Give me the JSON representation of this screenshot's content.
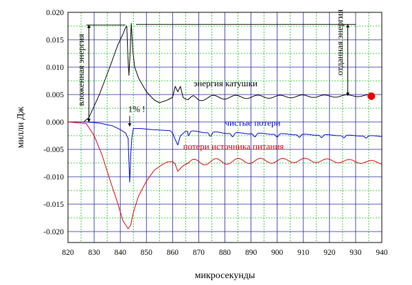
{
  "chart_data": {
    "type": "line",
    "title": "",
    "xlabel": "микросекунды",
    "ylabel": "милли Дж",
    "xlim": [
      820,
      940
    ],
    "ylim": [
      -0.022,
      0.02
    ],
    "xticks": [
      820,
      830,
      840,
      850,
      860,
      870,
      880,
      890,
      900,
      910,
      920,
      930,
      940
    ],
    "yticks": [
      0.02,
      0.015,
      0.01,
      0.005,
      0.0,
      -0.005,
      -0.01,
      -0.015,
      -0.02
    ],
    "ytick_labels": [
      "0.020",
      "0.015",
      "0.010",
      "0.005",
      "0.000",
      "-0.005",
      "-0.010",
      "-0.015",
      "-0.020"
    ],
    "grid": {
      "major_color": "#1f1f9e",
      "minor_color": "#00bb00",
      "x_major_step": 10,
      "y_major_step": 0.005
    },
    "colors": {
      "coil": "#000000",
      "net": "#0000cc",
      "source": "#dd0000",
      "marker": "#ee0000"
    },
    "series": [
      {
        "key": "coil",
        "color": "#000000",
        "x": [
          820,
          826,
          828,
          832,
          836,
          839,
          841,
          842,
          842.5,
          842.9,
          843.3,
          843.7,
          844.2,
          844.8,
          845.5,
          847,
          850,
          853,
          855,
          858,
          860,
          861,
          862,
          863,
          864,
          866,
          868,
          870,
          875,
          880,
          890,
          900,
          910,
          920,
          930,
          937
        ],
        "y": [
          0.0,
          0.0,
          0.0008,
          0.005,
          0.01,
          0.014,
          0.016,
          0.0172,
          0.0175,
          0.012,
          0.0085,
          0.012,
          0.018,
          0.013,
          0.01,
          0.008,
          0.0055,
          0.004,
          0.0035,
          0.004,
          0.0045,
          0.0065,
          0.0055,
          0.0065,
          0.0045,
          0.0038,
          0.0045,
          0.0042,
          0.0045,
          0.0045,
          0.0046,
          0.0046,
          0.0047,
          0.0047,
          0.0048,
          0.0048
        ],
        "ripple": {
          "start": 865,
          "end": 940,
          "period": 8.5,
          "amplitude": 0.0004,
          "decay": 0.012
        }
      },
      {
        "key": "net",
        "color": "#0000cc",
        "x": [
          820,
          827,
          832,
          837,
          840,
          842,
          843,
          843.6,
          844,
          844.4,
          845,
          848,
          852,
          856,
          859,
          860,
          861,
          862,
          863,
          865,
          870,
          880,
          890,
          900,
          910,
          920,
          930,
          940
        ],
        "y": [
          0.0,
          0.0,
          -0.0002,
          -0.0007,
          -0.0014,
          -0.002,
          -0.003,
          -0.011,
          -0.006,
          -0.003,
          -0.0012,
          -0.0012,
          -0.0014,
          -0.0015,
          -0.0016,
          -0.002,
          -0.0032,
          -0.0042,
          -0.0025,
          -0.0017,
          -0.0018,
          -0.002,
          -0.0021,
          -0.0022,
          -0.0023,
          -0.0024,
          -0.0025,
          -0.0026
        ],
        "ripple": {
          "start": 866,
          "end": 940,
          "period": 8.5,
          "amplitude": 0.0008,
          "decay": 0.01,
          "sharp": true
        }
      },
      {
        "key": "source",
        "color": "#dd0000",
        "x": [
          820,
          827,
          830,
          833,
          836,
          839,
          841,
          843,
          844,
          845,
          847,
          850,
          853,
          856,
          858,
          860,
          861,
          862,
          863,
          864,
          866,
          870,
          880,
          890,
          900,
          910,
          920,
          930,
          940
        ],
        "y": [
          0.0,
          -0.0003,
          -0.0025,
          -0.006,
          -0.0105,
          -0.0148,
          -0.018,
          -0.0195,
          -0.0188,
          -0.0165,
          -0.0135,
          -0.0108,
          -0.0088,
          -0.0078,
          -0.0073,
          -0.0072,
          -0.0077,
          -0.009,
          -0.0085,
          -0.008,
          -0.0075,
          -0.0073,
          -0.0072,
          -0.0071,
          -0.0071,
          -0.007,
          -0.0071,
          -0.0072,
          -0.0074
        ],
        "ripple": {
          "start": 866,
          "end": 940,
          "period": 8.5,
          "amplitude": 0.0006,
          "decay": 0.01
        }
      }
    ],
    "marker": {
      "x": 936,
      "y": 0.0047,
      "color": "#ee0000"
    },
    "reference_lines": [
      {
        "key": "stored-level",
        "x1": 827,
        "x2": 842,
        "y": 0.0177
      },
      {
        "key": "returned-level",
        "x1": 846,
        "x2": 930,
        "y": 0.0178
      }
    ],
    "annotations": [
      {
        "key": "stored-energy",
        "text": "вложенная энергия",
        "x": 826,
        "y": 0.0095,
        "vertical": true,
        "color": "#000000"
      },
      {
        "key": "returned-energy",
        "text": "отданная энергия",
        "x": 925,
        "y": 0.0145,
        "vertical": true,
        "color": "#000000"
      },
      {
        "key": "coil-energy",
        "text": "энергия катушки",
        "x": 868,
        "y": 0.0065,
        "color": "#000000"
      },
      {
        "key": "net-losses",
        "text": "чистые потери",
        "x": 880,
        "y": -0.0007,
        "color": "#0000cc"
      },
      {
        "key": "source-losses",
        "text": "потери источника питания",
        "x": 864,
        "y": -0.005,
        "color": "#dd0000"
      },
      {
        "key": "one-percent",
        "text": "1% !",
        "x": 843,
        "y": 0.0018,
        "color": "#000000"
      }
    ]
  }
}
